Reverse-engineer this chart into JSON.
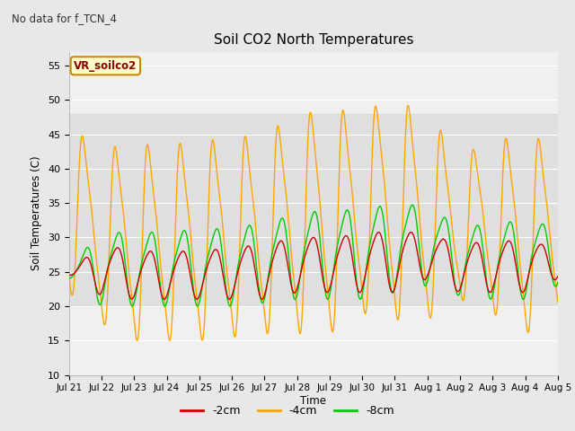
{
  "title": "Soil CO2 North Temperatures",
  "subtitle": "No data for f_TCN_4",
  "ylabel": "Soil Temperatures (C)",
  "xlabel": "Time",
  "ylim": [
    10,
    57
  ],
  "yticks": [
    10,
    15,
    20,
    25,
    30,
    35,
    40,
    45,
    50,
    55
  ],
  "xtick_labels": [
    "Jul 21",
    "Jul 22",
    "Jul 23",
    "Jul 24",
    "Jul 25",
    "Jul 26",
    "Jul 27",
    "Jul 28",
    "Jul 29",
    "Jul 30",
    "Jul 31",
    "Aug 1",
    "Aug 2",
    "Aug 3",
    "Aug 4",
    "Aug 5"
  ],
  "legend_label": "VR_soilco2",
  "bg_color": "#e8e8e8",
  "plot_bg_color": "#f0f0f0",
  "shaded_band": [
    20,
    48
  ],
  "line_colors": {
    "2cm": "#cc0000",
    "4cm": "#ffa500",
    "8cm": "#00cc00"
  },
  "line_labels": [
    "-2cm",
    "-4cm",
    "-8cm"
  ],
  "n_days": 15,
  "seed": 42
}
